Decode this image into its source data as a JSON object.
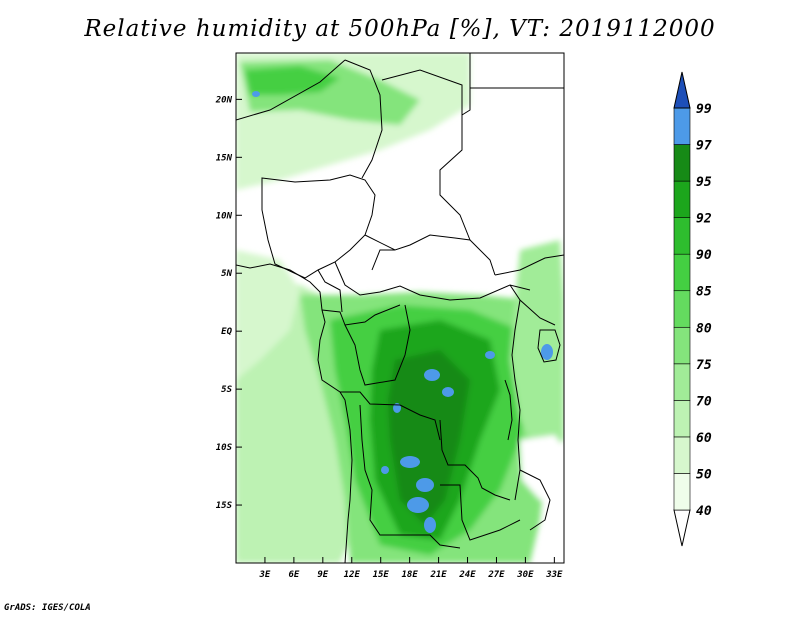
{
  "title": "Relative humidity at 500hPa [%], VT: 2019112000",
  "credit": "GrADS: IGES/COLA",
  "map": {
    "projection": "latlon",
    "lon_range": [
      0,
      34
    ],
    "lat_range": [
      -20,
      24
    ],
    "y_ticks": [
      {
        "value": 20,
        "label": "20N"
      },
      {
        "value": 15,
        "label": "15N"
      },
      {
        "value": 10,
        "label": "10N"
      },
      {
        "value": 5,
        "label": "5N"
      },
      {
        "value": 0,
        "label": "EQ"
      },
      {
        "value": -5,
        "label": "5S"
      },
      {
        "value": -10,
        "label": "10S"
      },
      {
        "value": -15,
        "label": "15S"
      }
    ],
    "x_ticks": [
      {
        "value": 3,
        "label": "3E"
      },
      {
        "value": 6,
        "label": "6E"
      },
      {
        "value": 9,
        "label": "9E"
      },
      {
        "value": 12,
        "label": "12E"
      },
      {
        "value": 15,
        "label": "15E"
      },
      {
        "value": 18,
        "label": "18E"
      },
      {
        "value": 21,
        "label": "21E"
      },
      {
        "value": 24,
        "label": "24E"
      },
      {
        "value": 27,
        "label": "27E"
      },
      {
        "value": 30,
        "label": "30E"
      },
      {
        "value": 33,
        "label": "33E"
      }
    ]
  },
  "colorbar": {
    "levels": [
      "40",
      "50",
      "60",
      "70",
      "75",
      "80",
      "85",
      "90",
      "92",
      "95",
      "97",
      "99"
    ],
    "colors": [
      "#effdea",
      "#d6f7cd",
      "#bdf2b3",
      "#a1ec98",
      "#84e47c",
      "#64db5f",
      "#44cf42",
      "#2ebd2e",
      "#1ca61c",
      "#168a16",
      "#4d9ae8",
      "#2b6fd8",
      "#1d4fb8"
    ]
  }
}
